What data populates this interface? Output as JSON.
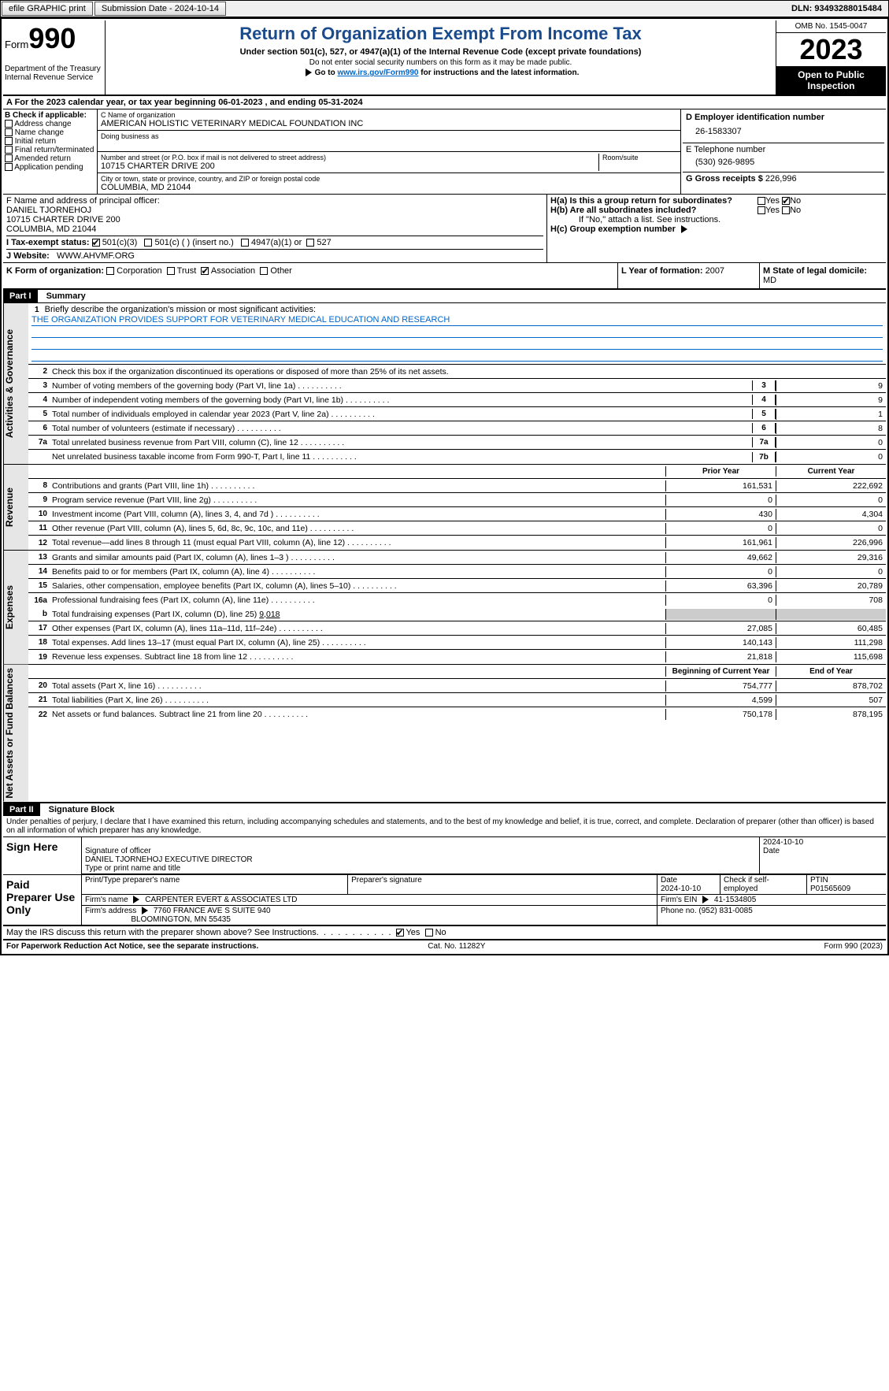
{
  "topbar": {
    "efile": "efile GRAPHIC print",
    "submission": "Submission Date - 2024-10-14",
    "dln": "DLN: 93493288015484"
  },
  "header": {
    "form_label": "Form",
    "form_no": "990",
    "dept": "Department of the Treasury Internal Revenue Service",
    "title": "Return of Organization Exempt From Income Tax",
    "sub1": "Under section 501(c), 527, or 4947(a)(1) of the Internal Revenue Code (except private foundations)",
    "sub2": "Do not enter social security numbers on this form as it may be made public.",
    "sub3_pre": "Go to ",
    "sub3_link": "www.irs.gov/Form990",
    "sub3_post": " for instructions and the latest information.",
    "omb": "OMB No. 1545-0047",
    "year": "2023",
    "openpub": "Open to Public Inspection"
  },
  "rowA": "A For the 2023 calendar year, or tax year beginning 06-01-2023   , and ending 05-31-2024",
  "boxB": {
    "title": "B Check if applicable:",
    "opts": [
      "Address change",
      "Name change",
      "Initial return",
      "Final return/terminated",
      "Amended return",
      "Application pending"
    ]
  },
  "boxC": {
    "name_lbl": "C Name of organization",
    "name": "AMERICAN HOLISTIC VETERINARY MEDICAL FOUNDATION INC",
    "dba_lbl": "Doing business as",
    "addr_lbl": "Number and street (or P.O. box if mail is not delivered to street address)",
    "room_lbl": "Room/suite",
    "addr": "10715 CHARTER DRIVE 200",
    "city_lbl": "City or town, state or province, country, and ZIP or foreign postal code",
    "city": "COLUMBIA, MD  21044"
  },
  "boxD": {
    "lbl": "D Employer identification number",
    "val": "26-1583307"
  },
  "boxE": {
    "lbl": "E Telephone number",
    "val": "(530) 926-9895"
  },
  "boxG": {
    "lbl": "G Gross receipts $",
    "val": "226,996"
  },
  "boxF": {
    "lbl": "F  Name and address of principal officer:",
    "name": "DANIEL TJORNEHOJ",
    "addr1": "10715 CHARTER DRIVE 200",
    "addr2": "COLUMBIA, MD  21044"
  },
  "boxH": {
    "ha": "H(a)  Is this a group return for subordinates?",
    "hb": "H(b)  Are all subordinates included?",
    "hb2": "If \"No,\" attach a list. See instructions.",
    "hc": "H(c)  Group exemption number",
    "yes": "Yes",
    "no": "No"
  },
  "rowI": {
    "lbl": "I   Tax-exempt status:",
    "o1": "501(c)(3)",
    "o2": "501(c) (  ) (insert no.)",
    "o3": "4947(a)(1) or",
    "o4": "527"
  },
  "rowJ": {
    "lbl": "J   Website:",
    "val": "WWW.AHVMF.ORG"
  },
  "rowK": {
    "lbl": "K Form of organization:",
    "o1": "Corporation",
    "o2": "Trust",
    "o3": "Association",
    "o4": "Other"
  },
  "rowL": {
    "lbl": "L Year of formation:",
    "val": "2007"
  },
  "rowM": {
    "lbl": "M State of legal domicile:",
    "val": "MD"
  },
  "part1": {
    "hdr": "Part I",
    "title": "Summary"
  },
  "sidelabels": {
    "ag": "Activities & Governance",
    "rev": "Revenue",
    "exp": "Expenses",
    "na": "Net Assets or Fund Balances"
  },
  "line1": {
    "lbl": "Briefly describe the organization's mission or most significant activities:",
    "val": "THE ORGANIZATION PROVIDES SUPPORT FOR VETERINARY MEDICAL EDUCATION AND RESEARCH"
  },
  "line2": "Check this box      if the organization discontinued its operations or disposed of more than 25% of its net assets.",
  "lines_ag": [
    {
      "n": "3",
      "t": "Number of voting members of the governing body (Part VI, line 1a)",
      "b": "3",
      "v": "9"
    },
    {
      "n": "4",
      "t": "Number of independent voting members of the governing body (Part VI, line 1b)",
      "b": "4",
      "v": "9"
    },
    {
      "n": "5",
      "t": "Total number of individuals employed in calendar year 2023 (Part V, line 2a)",
      "b": "5",
      "v": "1"
    },
    {
      "n": "6",
      "t": "Total number of volunteers (estimate if necessary)",
      "b": "6",
      "v": "8"
    },
    {
      "n": "7a",
      "t": "Total unrelated business revenue from Part VIII, column (C), line 12",
      "b": "7a",
      "v": "0"
    },
    {
      "n": "",
      "t": "Net unrelated business taxable income from Form 990-T, Part I, line 11",
      "b": "7b",
      "v": "0"
    }
  ],
  "colhdr": {
    "prior": "Prior Year",
    "current": "Current Year",
    "boy": "Beginning of Current Year",
    "eoy": "End of Year"
  },
  "lines_rev": [
    {
      "n": "8",
      "t": "Contributions and grants (Part VIII, line 1h)",
      "p": "161,531",
      "c": "222,692"
    },
    {
      "n": "9",
      "t": "Program service revenue (Part VIII, line 2g)",
      "p": "0",
      "c": "0"
    },
    {
      "n": "10",
      "t": "Investment income (Part VIII, column (A), lines 3, 4, and 7d )",
      "p": "430",
      "c": "4,304"
    },
    {
      "n": "11",
      "t": "Other revenue (Part VIII, column (A), lines 5, 6d, 8c, 9c, 10c, and 11e)",
      "p": "0",
      "c": "0"
    },
    {
      "n": "12",
      "t": "Total revenue—add lines 8 through 11 (must equal Part VIII, column (A), line 12)",
      "p": "161,961",
      "c": "226,996"
    }
  ],
  "lines_exp": [
    {
      "n": "13",
      "t": "Grants and similar amounts paid (Part IX, column (A), lines 1–3 )",
      "p": "49,662",
      "c": "29,316"
    },
    {
      "n": "14",
      "t": "Benefits paid to or for members (Part IX, column (A), line 4)",
      "p": "0",
      "c": "0"
    },
    {
      "n": "15",
      "t": "Salaries, other compensation, employee benefits (Part IX, column (A), lines 5–10)",
      "p": "63,396",
      "c": "20,789"
    },
    {
      "n": "16a",
      "t": "Professional fundraising fees (Part IX, column (A), line 11e)",
      "p": "0",
      "c": "708"
    }
  ],
  "line16b": {
    "n": "b",
    "t": "Total fundraising expenses (Part IX, column (D), line 25)",
    "v": "9,018"
  },
  "lines_exp2": [
    {
      "n": "17",
      "t": "Other expenses (Part IX, column (A), lines 11a–11d, 11f–24e)",
      "p": "27,085",
      "c": "60,485"
    },
    {
      "n": "18",
      "t": "Total expenses. Add lines 13–17 (must equal Part IX, column (A), line 25)",
      "p": "140,143",
      "c": "111,298"
    },
    {
      "n": "19",
      "t": "Revenue less expenses. Subtract line 18 from line 12",
      "p": "21,818",
      "c": "115,698"
    }
  ],
  "lines_na": [
    {
      "n": "20",
      "t": "Total assets (Part X, line 16)",
      "p": "754,777",
      "c": "878,702"
    },
    {
      "n": "21",
      "t": "Total liabilities (Part X, line 26)",
      "p": "4,599",
      "c": "507"
    },
    {
      "n": "22",
      "t": "Net assets or fund balances. Subtract line 21 from line 20",
      "p": "750,178",
      "c": "878,195"
    }
  ],
  "part2": {
    "hdr": "Part II",
    "title": "Signature Block"
  },
  "perjury": "Under penalties of perjury, I declare that I have examined this return, including accompanying schedules and statements, and to the best of my knowledge and belief, it is true, correct, and complete. Declaration of preparer (other than officer) is based on all information of which preparer has any knowledge.",
  "sign": {
    "here": "Sign Here",
    "sig_lbl": "Signature of officer",
    "date_lbl": "Date",
    "date_val": "2024-10-10",
    "name": "DANIEL TJORNEHOJ  EXECUTIVE DIRECTOR",
    "name_lbl": "Type or print name and title"
  },
  "paid": {
    "hdr": "Paid Preparer Use Only",
    "pname_lbl": "Print/Type preparer's name",
    "psig_lbl": "Preparer's signature",
    "pdate_lbl": "Date",
    "pdate": "2024-10-10",
    "check_lbl": "Check         if self-employed",
    "ptin_lbl": "PTIN",
    "ptin": "P01565609",
    "firm_lbl": "Firm's name",
    "firm": "CARPENTER EVERT & ASSOCIATES LTD",
    "ein_lbl": "Firm's EIN",
    "ein": "41-1534805",
    "addr_lbl": "Firm's address",
    "addr1": "7760 FRANCE AVE S SUITE 940",
    "addr2": "BLOOMINGTON, MN  55435",
    "phone_lbl": "Phone no.",
    "phone": "(952) 831-0085"
  },
  "discuss": {
    "txt": "May the IRS discuss this return with the preparer shown above? See Instructions.",
    "yes": "Yes",
    "no": "No"
  },
  "footer": {
    "pra": "For Paperwork Reduction Act Notice, see the separate instructions.",
    "cat": "Cat. No. 11282Y",
    "form": "Form 990 (2023)"
  }
}
